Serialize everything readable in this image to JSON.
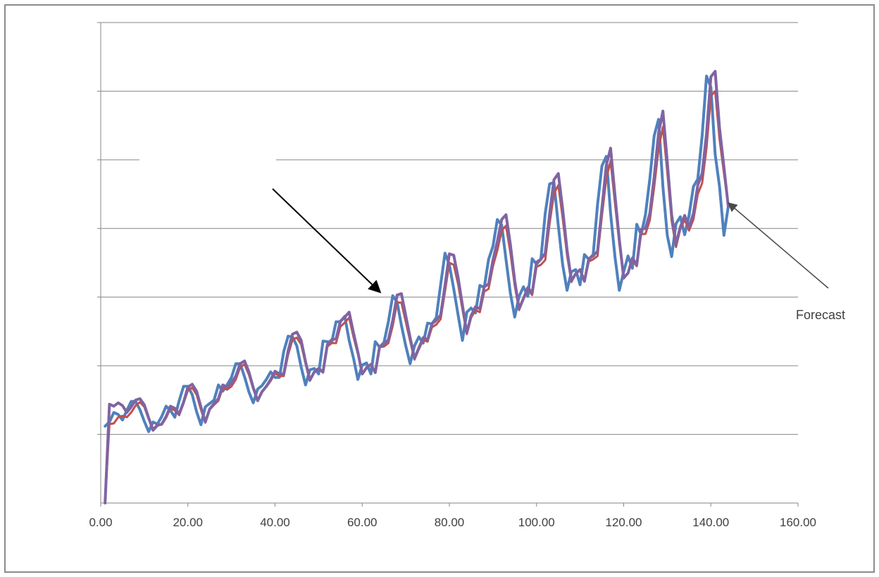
{
  "chart_data": {
    "type": "line",
    "title": "",
    "xlabel": "",
    "ylabel": "",
    "xlim": [
      0,
      160
    ],
    "ylim": [
      0,
      7
    ],
    "grid": true,
    "x_ticks": [
      0,
      20,
      40,
      60,
      80,
      100,
      120,
      140,
      160
    ],
    "x_tick_labels": [
      "0.00",
      "20.00",
      "40.00",
      "60.00",
      "80.00",
      "100.00",
      "120.00",
      "140.00",
      "160.00"
    ],
    "y_gridlines": [
      1,
      2,
      3,
      4,
      5,
      6,
      7
    ],
    "series": [
      {
        "color": "#4f81bd",
        "x": [
          1,
          2,
          3,
          4,
          5,
          6,
          7,
          8,
          9,
          10,
          11,
          12,
          13,
          14,
          15,
          16,
          17,
          18,
          19,
          20,
          21,
          22,
          23,
          24,
          25,
          26,
          27,
          28,
          29,
          30,
          31,
          32,
          33,
          34,
          35,
          36,
          37,
          38,
          39,
          40,
          41,
          42,
          43,
          44,
          45,
          46,
          47,
          48,
          49,
          50,
          51,
          52,
          53,
          54,
          55,
          56,
          57,
          58,
          59,
          60,
          61,
          62,
          63,
          64,
          65,
          66,
          67,
          68,
          69,
          70,
          71,
          72,
          73,
          74,
          75,
          76,
          77,
          78,
          79,
          80,
          81,
          82,
          83,
          84,
          85,
          86,
          87,
          88,
          89,
          90,
          91,
          92,
          93,
          94,
          95,
          96,
          97,
          98,
          99,
          100,
          101,
          102,
          103,
          104,
          105,
          106,
          107,
          108,
          109,
          110,
          111,
          112,
          113,
          114,
          115,
          116,
          117,
          118,
          119,
          120,
          121,
          122,
          123,
          124,
          125,
          126,
          127,
          128,
          129,
          130,
          131,
          132,
          133,
          134,
          135,
          136,
          137,
          138,
          139,
          140,
          141,
          142,
          143,
          144
        ],
        "values": [
          1.12,
          1.18,
          1.32,
          1.29,
          1.21,
          1.35,
          1.48,
          1.48,
          1.36,
          1.19,
          1.04,
          1.18,
          1.15,
          1.26,
          1.41,
          1.35,
          1.25,
          1.49,
          1.7,
          1.7,
          1.58,
          1.33,
          1.14,
          1.4,
          1.45,
          1.5,
          1.72,
          1.63,
          1.72,
          1.83,
          2.03,
          2.03,
          1.84,
          1.62,
          1.46,
          1.66,
          1.71,
          1.8,
          1.91,
          1.83,
          1.83,
          2.21,
          2.43,
          2.42,
          2.29,
          1.98,
          1.72,
          1.94,
          1.96,
          1.88,
          2.36,
          2.35,
          2.34,
          2.64,
          2.64,
          2.72,
          2.37,
          2.11,
          1.8,
          2.01,
          2.04,
          1.88,
          2.35,
          2.27,
          2.34,
          2.64,
          3.02,
          2.93,
          2.59,
          2.29,
          2.03,
          2.29,
          2.42,
          2.33,
          2.62,
          2.61,
          2.7,
          3.18,
          3.64,
          3.47,
          3.12,
          2.74,
          2.37,
          2.78,
          2.84,
          2.77,
          3.17,
          3.14,
          3.55,
          3.74,
          4.13,
          4.05,
          3.55,
          3.06,
          2.71,
          3.01,
          3.15,
          3.01,
          3.56,
          3.48,
          3.55,
          4.22,
          4.65,
          4.67,
          4.04,
          3.47,
          3.1,
          3.37,
          3.4,
          3.18,
          3.62,
          3.55,
          3.62,
          4.35,
          4.91,
          5.05,
          4.22,
          3.59,
          3.1,
          3.37,
          3.6,
          3.42,
          4.06,
          3.91,
          4.2,
          4.72,
          5.35,
          5.59,
          4.61,
          3.9,
          3.59,
          4.07,
          4.17,
          3.91,
          4.19,
          4.61,
          4.72,
          5.35,
          6.22,
          6.06,
          5.08,
          4.61,
          3.9,
          4.32
        ]
      },
      {
        "color": "#c0504d",
        "x": [
          1,
          2,
          3,
          4,
          5,
          6,
          7,
          8,
          9,
          10,
          11,
          12,
          13,
          14,
          15,
          16,
          17,
          18,
          19,
          20,
          21,
          22,
          23,
          24,
          25,
          26,
          27,
          28,
          29,
          30,
          31,
          32,
          33,
          34,
          35,
          36,
          37,
          38,
          39,
          40,
          41,
          42,
          43,
          44,
          45,
          46,
          47,
          48,
          49,
          50,
          51,
          52,
          53,
          54,
          55,
          56,
          57,
          58,
          59,
          60,
          61,
          62,
          63,
          64,
          65,
          66,
          67,
          68,
          69,
          70,
          71,
          72,
          73,
          74,
          75,
          76,
          77,
          78,
          79,
          80,
          81,
          82,
          83,
          84,
          85,
          86,
          87,
          88,
          89,
          90,
          91,
          92,
          93,
          94,
          95,
          96,
          97,
          98,
          99,
          100,
          101,
          102,
          103,
          104,
          105,
          106,
          107,
          108,
          109,
          110,
          111,
          112,
          113,
          114,
          115,
          116,
          117,
          118,
          119,
          120,
          121,
          122,
          123,
          124,
          125,
          126,
          127,
          128,
          129,
          130,
          131,
          132,
          133,
          134,
          135,
          136,
          137,
          138,
          139,
          140,
          141,
          142,
          143,
          144
        ],
        "values": [
          0.0,
          1.15,
          1.16,
          1.25,
          1.27,
          1.25,
          1.32,
          1.42,
          1.47,
          1.4,
          1.22,
          1.08,
          1.14,
          1.14,
          1.24,
          1.38,
          1.35,
          1.28,
          1.45,
          1.64,
          1.68,
          1.58,
          1.36,
          1.17,
          1.36,
          1.43,
          1.49,
          1.68,
          1.65,
          1.7,
          1.8,
          1.98,
          2.02,
          1.87,
          1.66,
          1.5,
          1.63,
          1.69,
          1.78,
          1.89,
          1.85,
          1.85,
          2.16,
          2.38,
          2.41,
          2.31,
          2.03,
          1.78,
          1.91,
          1.95,
          1.9,
          2.28,
          2.33,
          2.33,
          2.57,
          2.63,
          2.7,
          2.42,
          2.17,
          1.88,
          1.98,
          2.02,
          1.91,
          2.27,
          2.28,
          2.33,
          2.58,
          2.92,
          2.92,
          2.64,
          2.36,
          2.09,
          2.24,
          2.38,
          2.35,
          2.56,
          2.6,
          2.68,
          3.08,
          3.5,
          3.47,
          3.19,
          2.82,
          2.46,
          2.7,
          2.81,
          2.78,
          3.08,
          3.12,
          3.45,
          3.68,
          3.97,
          4.04,
          3.65,
          3.17,
          2.81,
          2.97,
          3.11,
          3.03,
          3.44,
          3.47,
          3.54,
          4.07,
          4.51,
          4.63,
          4.15,
          3.61,
          3.22,
          3.34,
          3.39,
          3.23,
          3.52,
          3.55,
          3.6,
          4.18,
          4.73,
          4.98,
          4.37,
          3.78,
          3.27,
          3.35,
          3.54,
          3.45,
          3.92,
          3.92,
          4.12,
          4.6,
          5.16,
          5.48,
          4.82,
          4.11,
          3.73,
          3.99,
          4.13,
          3.97,
          4.13,
          4.5,
          4.66,
          5.17,
          5.93,
          6.0,
          5.3,
          4.81,
          4.32
        ]
      },
      {
        "color": "#8064a2",
        "x": [
          1,
          2,
          3,
          4,
          5,
          6,
          7,
          8,
          9,
          10,
          11,
          12,
          13,
          14,
          15,
          16,
          17,
          18,
          19,
          20,
          21,
          22,
          23,
          24,
          25,
          26,
          27,
          28,
          29,
          30,
          31,
          32,
          33,
          34,
          35,
          36,
          37,
          38,
          39,
          40,
          41,
          42,
          43,
          44,
          45,
          46,
          47,
          48,
          49,
          50,
          51,
          52,
          53,
          54,
          55,
          56,
          57,
          58,
          59,
          60,
          61,
          62,
          63,
          64,
          65,
          66,
          67,
          68,
          69,
          70,
          71,
          72,
          73,
          74,
          75,
          76,
          77,
          78,
          79,
          80,
          81,
          82,
          83,
          84,
          85,
          86,
          87,
          88,
          89,
          90,
          91,
          92,
          93,
          94,
          95,
          96,
          97,
          98,
          99,
          100,
          101,
          102,
          103,
          104,
          105,
          106,
          107,
          108,
          109,
          110,
          111,
          112,
          113,
          114,
          115,
          116,
          117,
          118,
          119,
          120,
          121,
          122,
          123,
          124,
          125,
          126,
          127,
          128,
          129,
          130,
          131,
          132,
          133,
          134,
          135,
          136,
          137,
          138,
          139,
          140,
          141,
          142,
          143,
          144
        ],
        "values": [
          0.0,
          1.44,
          1.41,
          1.46,
          1.42,
          1.32,
          1.4,
          1.5,
          1.52,
          1.43,
          1.24,
          1.06,
          1.13,
          1.15,
          1.26,
          1.41,
          1.38,
          1.3,
          1.47,
          1.69,
          1.73,
          1.63,
          1.4,
          1.18,
          1.37,
          1.45,
          1.52,
          1.72,
          1.69,
          1.75,
          1.85,
          2.03,
          2.07,
          1.91,
          1.68,
          1.49,
          1.62,
          1.7,
          1.8,
          1.92,
          1.88,
          1.88,
          2.22,
          2.46,
          2.49,
          2.37,
          2.06,
          1.79,
          1.91,
          1.96,
          1.91,
          2.31,
          2.38,
          2.39,
          2.65,
          2.71,
          2.78,
          2.48,
          2.2,
          1.88,
          1.97,
          2.02,
          1.9,
          2.28,
          2.31,
          2.38,
          2.66,
          3.03,
          3.05,
          2.73,
          2.41,
          2.11,
          2.26,
          2.41,
          2.38,
          2.61,
          2.66,
          2.74,
          3.17,
          3.63,
          3.61,
          3.29,
          2.88,
          2.48,
          2.73,
          2.86,
          2.83,
          3.15,
          3.19,
          3.54,
          3.81,
          4.13,
          4.2,
          3.77,
          3.24,
          2.83,
          2.98,
          3.14,
          3.06,
          3.51,
          3.55,
          3.64,
          4.21,
          4.71,
          4.8,
          4.28,
          3.69,
          3.24,
          3.34,
          3.4,
          3.23,
          3.56,
          3.6,
          3.67,
          4.3,
          4.92,
          5.17,
          4.49,
          3.84,
          3.28,
          3.35,
          3.57,
          3.47,
          3.99,
          4.0,
          4.22,
          4.75,
          5.39,
          5.71,
          4.97,
          4.2,
          3.78,
          4.02,
          4.19,
          4.02,
          4.22,
          4.63,
          4.8,
          5.38,
          6.21,
          6.29,
          5.46,
          4.9,
          4.32
        ]
      }
    ],
    "annotations": [
      {
        "text": "Forecast"
      }
    ]
  }
}
